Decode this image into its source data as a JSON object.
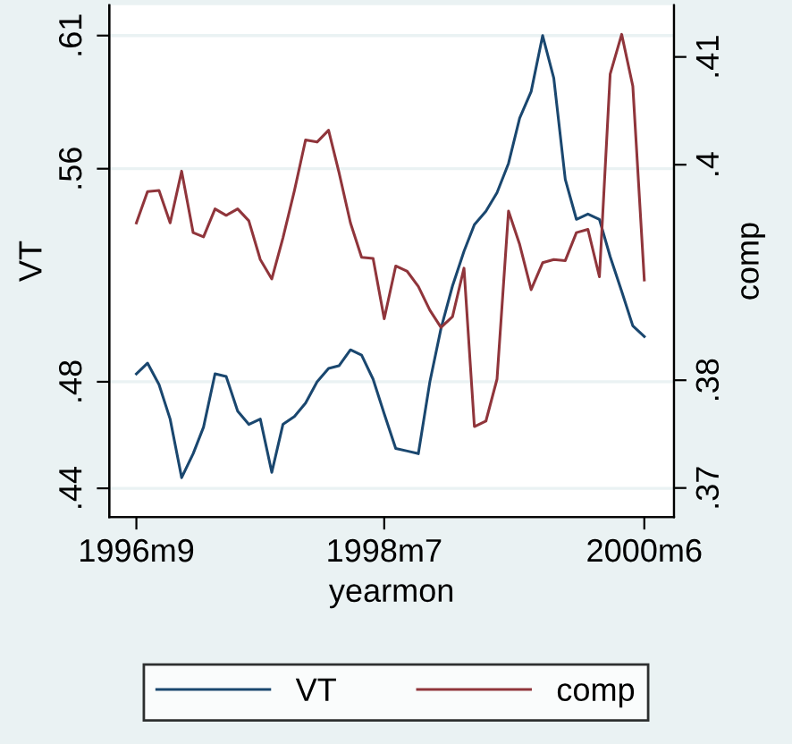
{
  "chart_data": {
    "type": "line",
    "xlabel": "yearmon",
    "ylabel": "VT",
    "y2label": "comp",
    "x": [
      "1996-09",
      "1996-10",
      "1996-11",
      "1996-12",
      "1997-01",
      "1997-02",
      "1997-03",
      "1997-04",
      "1997-05",
      "1997-06",
      "1997-07",
      "1997-08",
      "1997-09",
      "1997-10",
      "1997-11",
      "1997-12",
      "1998-01",
      "1998-02",
      "1998-03",
      "1998-04",
      "1998-05",
      "1998-06",
      "1998-07",
      "1998-08",
      "1998-09",
      "1998-10",
      "1998-11",
      "1998-12",
      "1999-01",
      "1999-02",
      "1999-03",
      "1999-04",
      "1999-05",
      "1999-06",
      "1999-07",
      "1999-08",
      "1999-09",
      "1999-10",
      "1999-11",
      "1999-12",
      "2000-01",
      "2000-02",
      "2000-03",
      "2000-04",
      "2000-05",
      "2000-06"
    ],
    "series": [
      {
        "name": "VT",
        "color": "#1a476f",
        "values": [
          0.483,
          0.487,
          0.479,
          0.466,
          0.444,
          0.453,
          0.463,
          0.483,
          0.482,
          0.469,
          0.464,
          0.466,
          0.446,
          0.464,
          0.467,
          0.472,
          0.48,
          0.485,
          0.486,
          0.492,
          0.49,
          0.481,
          0.468,
          0.455,
          0.454,
          0.453,
          0.48,
          0.5,
          0.516,
          0.529,
          0.539,
          0.544,
          0.551,
          0.562,
          0.579,
          0.589,
          0.61,
          0.594,
          0.556,
          0.541,
          0.543,
          0.541,
          0.527,
          0.514,
          0.501,
          0.497
        ]
      },
      {
        "name": "comp",
        "color": "#90353b",
        "axis": "y2",
        "values": [
          0.3946,
          0.3975,
          0.3976,
          0.3946,
          0.3994,
          0.3937,
          0.3933,
          0.3959,
          0.3953,
          0.3959,
          0.3948,
          0.3912,
          0.3894,
          0.3932,
          0.3976,
          0.4023,
          0.4021,
          0.4032,
          0.3993,
          0.3946,
          0.3914,
          0.3913,
          0.3857,
          0.3906,
          0.3901,
          0.3887,
          0.3865,
          0.3849,
          0.3859,
          0.3904,
          0.3757,
          0.3762,
          0.3801,
          0.3957,
          0.3926,
          0.3884,
          0.3909,
          0.3912,
          0.3911,
          0.3937,
          0.394,
          0.3896,
          0.4084,
          0.4121,
          0.4073,
          0.3893
        ]
      }
    ],
    "xlim": [
      "1996-06-20",
      "2000-08-20"
    ],
    "xticks": [
      {
        "value": "1996-09",
        "label": "1996m9"
      },
      {
        "value": "1998-07",
        "label": "1998m7"
      },
      {
        "value": "2000-06",
        "label": "2000m6"
      }
    ],
    "ylim": [
      0.4292,
      0.6214
    ],
    "yticks": [
      {
        "value": 0.44,
        "label": ".44"
      },
      {
        "value": 0.48,
        "label": ".48"
      },
      {
        "value": 0.56,
        "label": ".56"
      },
      {
        "value": 0.61,
        "label": ".61"
      }
    ],
    "y2lim": [
      0.3673,
      0.4148
    ],
    "y2ticks": [
      {
        "value": 0.37,
        "label": ".37"
      },
      {
        "value": 0.38,
        "label": ".38"
      },
      {
        "value": 0.4,
        "label": ".4"
      },
      {
        "value": 0.41,
        "label": ".41"
      }
    ],
    "grid": "y",
    "legend": "bottom",
    "marker": "none",
    "line_style": "solid"
  }
}
